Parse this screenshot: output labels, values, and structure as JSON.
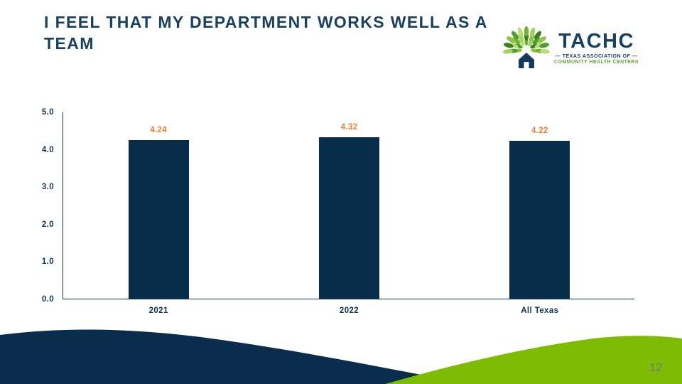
{
  "slide": {
    "title": "I FEEL THAT MY DEPARTMENT WORKS WELL AS A TEAM",
    "page_number": "12"
  },
  "logo": {
    "name": "TACHC",
    "subtitle_line1": "— TEXAS ASSOCIATION OF —",
    "subtitle_line2": "COMMUNITY HEALTH CENTERS"
  },
  "colors": {
    "bar_navy": "#082D4B",
    "axis_navy": "#0D3356",
    "title_navy": "#1A4060",
    "label_orange": "#ED7D31",
    "wave_navy": "#0B2D4D",
    "wave_green": "#7EBB04"
  },
  "chart_data": {
    "type": "bar",
    "categories": [
      "2021",
      "2022",
      "All Texas"
    ],
    "values": [
      4.24,
      4.32,
      4.22
    ],
    "value_labels": [
      "4.24",
      "4.32",
      "4.22"
    ],
    "title": "",
    "xlabel": "",
    "ylabel": "",
    "ylim": [
      0,
      5
    ],
    "ytick_labels": [
      "5.0",
      "4.0",
      "3.0",
      "2.0",
      "1.0",
      "0.0"
    ],
    "grid": false,
    "legend": false,
    "bar_color": "#082D4B",
    "value_label_color": "#ED7D31"
  }
}
